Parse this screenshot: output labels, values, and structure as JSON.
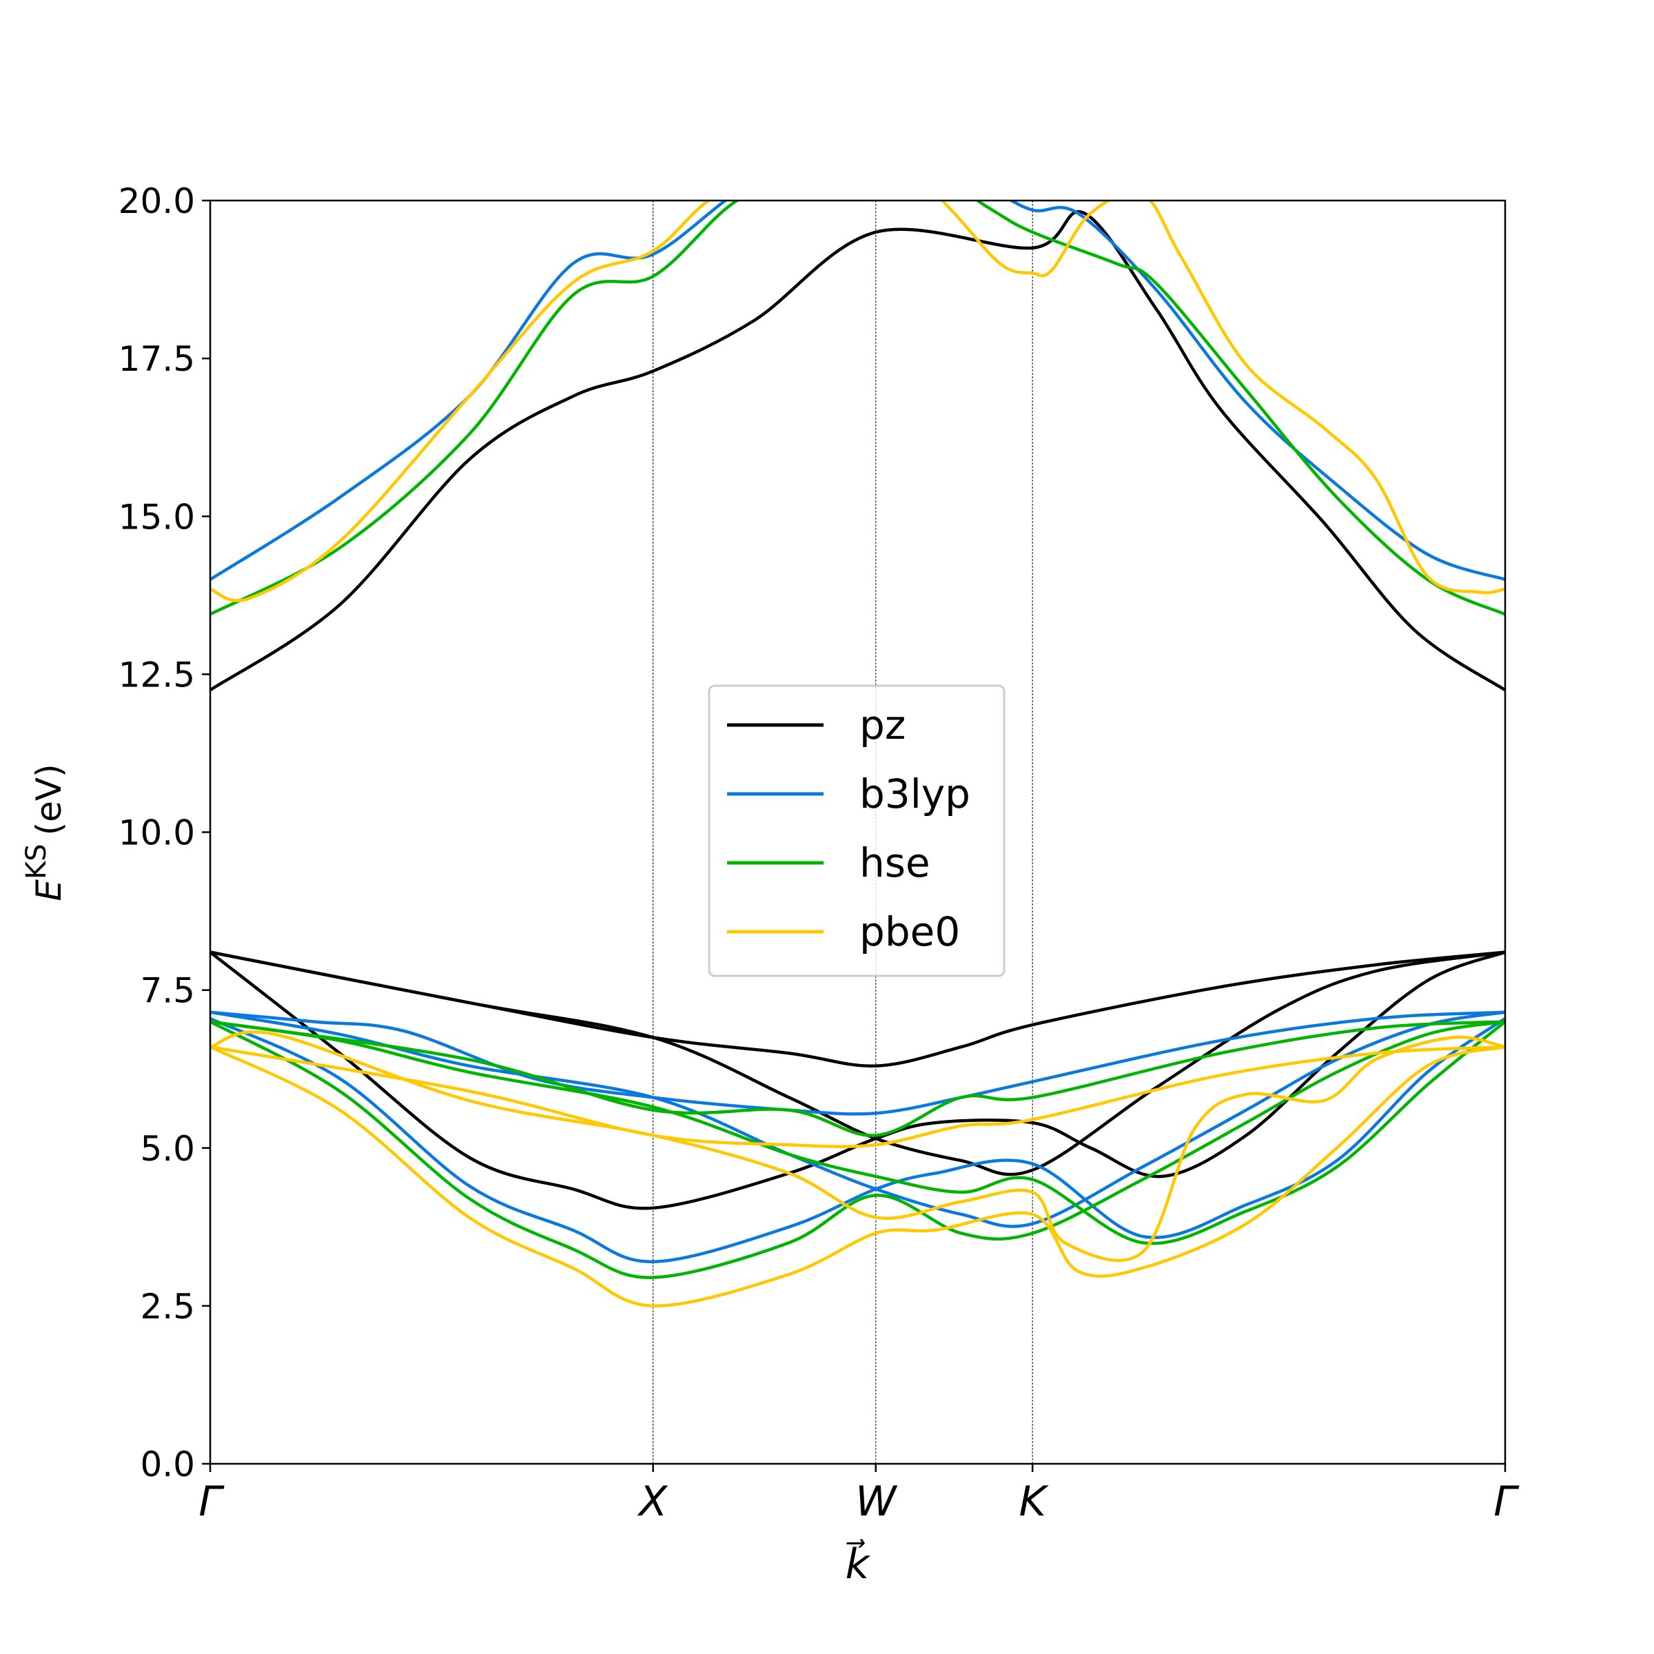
{
  "chart_data": {
    "type": "line",
    "xlabel": "k⃗",
    "ylabel": "E^KS (eV)",
    "ylabel_main": "E",
    "ylabel_sup": "KS",
    "ylabel_unit": "(eV)",
    "ylim": [
      0,
      20
    ],
    "yticks": [
      "0.0",
      "2.5",
      "5.0",
      "7.5",
      "10.0",
      "12.5",
      "15.0",
      "17.5",
      "20.0"
    ],
    "xlim": [
      0,
      1
    ],
    "high_symmetry_points": [
      {
        "label": "Γ",
        "k": 0
      },
      {
        "label": "X",
        "k": 0.342
      },
      {
        "label": "W",
        "k": 0.514
      },
      {
        "label": "K",
        "k": 0.635
      },
      {
        "label": "Γ",
        "k": 1
      }
    ],
    "legend_position": "center",
    "series": [
      {
        "name": "pz",
        "color": "#000000",
        "bands": [
          [
            [
              0,
              12.25
            ],
            [
              0.1,
              13.6
            ],
            [
              0.2,
              15.9
            ],
            [
              0.28,
              16.9
            ],
            [
              0.342,
              17.3
            ],
            [
              0.42,
              18.1
            ],
            [
              0.514,
              19.5
            ],
            [
              0.635,
              19.25
            ],
            [
              0.675,
              19.8
            ],
            [
              0.73,
              18.3
            ],
            [
              0.78,
              16.7
            ],
            [
              0.86,
              14.9
            ],
            [
              0.93,
              13.2
            ],
            [
              1,
              12.25
            ]
          ],
          [
            [
              0,
              8.1
            ],
            [
              0.2,
              7.3
            ],
            [
              0.342,
              6.75
            ],
            [
              0.447,
              6.5
            ],
            [
              0.514,
              6.3
            ],
            [
              0.58,
              6.6
            ],
            [
              0.635,
              6.95
            ],
            [
              0.78,
              7.55
            ],
            [
              0.9,
              7.9
            ],
            [
              1,
              8.1
            ]
          ],
          [
            [
              0,
              8.1
            ],
            [
              0.2,
              7.3
            ],
            [
              0.342,
              6.75
            ],
            [
              0.447,
              5.8
            ],
            [
              0.514,
              5.15
            ],
            [
              0.58,
              4.8
            ],
            [
              0.635,
              4.65
            ],
            [
              0.73,
              5.95
            ],
            [
              0.826,
              7.2
            ],
            [
              0.9,
              7.8
            ],
            [
              1,
              8.1
            ]
          ],
          [
            [
              0,
              8.1
            ],
            [
              0.1,
              6.5
            ],
            [
              0.2,
              4.85
            ],
            [
              0.28,
              4.35
            ],
            [
              0.342,
              4.05
            ],
            [
              0.447,
              4.6
            ],
            [
              0.514,
              5.15
            ],
            [
              0.56,
              5.4
            ],
            [
              0.635,
              5.4
            ],
            [
              0.68,
              5.0
            ],
            [
              0.735,
              4.55
            ],
            [
              0.8,
              5.2
            ],
            [
              0.87,
              6.5
            ],
            [
              0.94,
              7.65
            ],
            [
              1,
              8.1
            ]
          ]
        ]
      },
      {
        "name": "b3lyp",
        "color": "#0a78dc",
        "bands": [
          [
            [
              0,
              14.0
            ],
            [
              0.1,
              15.3
            ],
            [
              0.2,
              16.9
            ],
            [
              0.28,
              19.0
            ],
            [
              0.342,
              19.15
            ],
            [
              0.42,
              20.3
            ],
            [
              0.514,
              21
            ],
            [
              0.6,
              20.2
            ],
            [
              0.635,
              19.85
            ],
            [
              0.67,
              19.8
            ],
            [
              0.73,
              18.6
            ],
            [
              0.8,
              16.8
            ],
            [
              0.87,
              15.5
            ],
            [
              0.94,
              14.4
            ],
            [
              1,
              14.0
            ]
          ],
          [
            [
              0,
              7.15
            ],
            [
              0.08,
              7.0
            ],
            [
              0.15,
              6.85
            ],
            [
              0.25,
              6.1
            ],
            [
              0.342,
              5.8
            ],
            [
              0.447,
              5.6
            ],
            [
              0.514,
              5.55
            ],
            [
              0.58,
              5.8
            ],
            [
              0.635,
              6.05
            ],
            [
              0.78,
              6.7
            ],
            [
              0.9,
              7.05
            ],
            [
              1,
              7.15
            ]
          ],
          [
            [
              0,
              7.15
            ],
            [
              0.1,
              6.8
            ],
            [
              0.2,
              6.3
            ],
            [
              0.342,
              5.8
            ],
            [
              0.447,
              4.9
            ],
            [
              0.514,
              4.35
            ],
            [
              0.58,
              3.95
            ],
            [
              0.635,
              3.8
            ],
            [
              0.72,
              4.7
            ],
            [
              0.8,
              5.6
            ],
            [
              0.87,
              6.4
            ],
            [
              0.94,
              6.95
            ],
            [
              1,
              7.15
            ]
          ],
          [
            [
              0,
              7.05
            ],
            [
              0.1,
              6.1
            ],
            [
              0.2,
              4.4
            ],
            [
              0.28,
              3.7
            ],
            [
              0.342,
              3.2
            ],
            [
              0.447,
              3.75
            ],
            [
              0.514,
              4.35
            ],
            [
              0.56,
              4.6
            ],
            [
              0.635,
              4.75
            ],
            [
              0.72,
              3.6
            ],
            [
              0.8,
              4.1
            ],
            [
              0.87,
              4.8
            ],
            [
              0.94,
              6.2
            ],
            [
              1,
              7.05
            ]
          ]
        ]
      },
      {
        "name": "hse",
        "color": "#00b400",
        "bands": [
          [
            [
              0,
              13.45
            ],
            [
              0.1,
              14.5
            ],
            [
              0.2,
              16.3
            ],
            [
              0.28,
              18.5
            ],
            [
              0.342,
              18.8
            ],
            [
              0.4,
              19.9
            ],
            [
              0.45,
              20.5
            ],
            [
              0.514,
              21
            ],
            [
              0.6,
              19.9
            ],
            [
              0.635,
              19.5
            ],
            [
              0.7,
              19.0
            ],
            [
              0.73,
              18.7
            ],
            [
              0.8,
              17.0
            ],
            [
              0.87,
              15.3
            ],
            [
              0.94,
              14.0
            ],
            [
              1,
              13.45
            ]
          ],
          [
            [
              0,
              7.0
            ],
            [
              0.2,
              6.4
            ],
            [
              0.342,
              5.6
            ],
            [
              0.447,
              5.6
            ],
            [
              0.514,
              5.2
            ],
            [
              0.58,
              5.8
            ],
            [
              0.635,
              5.8
            ],
            [
              0.78,
              6.5
            ],
            [
              0.9,
              6.9
            ],
            [
              1,
              7.0
            ]
          ],
          [
            [
              0,
              7.0
            ],
            [
              0.1,
              6.7
            ],
            [
              0.2,
              6.2
            ],
            [
              0.342,
              5.65
            ],
            [
              0.447,
              4.9
            ],
            [
              0.514,
              4.55
            ],
            [
              0.58,
              4.3
            ],
            [
              0.635,
              4.5
            ],
            [
              0.72,
              3.5
            ],
            [
              0.8,
              4.0
            ],
            [
              0.87,
              4.7
            ],
            [
              0.94,
              6.0
            ],
            [
              1,
              7.0
            ]
          ],
          [
            [
              0,
              7.0
            ],
            [
              0.1,
              5.9
            ],
            [
              0.2,
              4.2
            ],
            [
              0.28,
              3.4
            ],
            [
              0.342,
              2.95
            ],
            [
              0.447,
              3.5
            ],
            [
              0.514,
              4.25
            ],
            [
              0.58,
              3.65
            ],
            [
              0.635,
              3.65
            ],
            [
              0.72,
              4.5
            ],
            [
              0.8,
              5.4
            ],
            [
              0.87,
              6.2
            ],
            [
              0.94,
              6.8
            ],
            [
              1,
              7.0
            ]
          ]
        ]
      },
      {
        "name": "pbe0",
        "color": "#ffc800",
        "bands": [
          [
            [
              0,
              13.85
            ],
            [
              0.03,
              13.7
            ],
            [
              0.1,
              14.6
            ],
            [
              0.2,
              16.9
            ],
            [
              0.28,
              18.7
            ],
            [
              0.342,
              19.2
            ],
            [
              0.4,
              20.2
            ],
            [
              0.514,
              21
            ],
            [
              0.57,
              19.9
            ],
            [
              0.61,
              19.0
            ],
            [
              0.635,
              18.85
            ],
            [
              0.65,
              18.9
            ],
            [
              0.68,
              19.8
            ],
            [
              0.72,
              20.1
            ],
            [
              0.75,
              19.1
            ],
            [
              0.8,
              17.4
            ],
            [
              0.86,
              16.4
            ],
            [
              0.9,
              15.6
            ],
            [
              0.94,
              14.05
            ],
            [
              0.98,
              13.8
            ],
            [
              1,
              13.85
            ]
          ],
          [
            [
              0,
              6.6
            ],
            [
              0.2,
              5.9
            ],
            [
              0.342,
              5.2
            ],
            [
              0.447,
              5.05
            ],
            [
              0.514,
              5.05
            ],
            [
              0.58,
              5.35
            ],
            [
              0.635,
              5.45
            ],
            [
              0.78,
              6.15
            ],
            [
              0.9,
              6.5
            ],
            [
              1,
              6.6
            ]
          ],
          [
            [
              0,
              6.6
            ],
            [
              0.05,
              6.8
            ],
            [
              0.2,
              5.75
            ],
            [
              0.342,
              5.2
            ],
            [
              0.447,
              4.6
            ],
            [
              0.514,
              3.9
            ],
            [
              0.58,
              4.15
            ],
            [
              0.635,
              4.3
            ],
            [
              0.66,
              3.5
            ],
            [
              0.72,
              3.35
            ],
            [
              0.76,
              5.3
            ],
            [
              0.8,
              5.85
            ],
            [
              0.86,
              5.75
            ],
            [
              0.9,
              6.4
            ],
            [
              0.96,
              6.75
            ],
            [
              1,
              6.6
            ]
          ],
          [
            [
              0,
              6.6
            ],
            [
              0.1,
              5.6
            ],
            [
              0.2,
              3.9
            ],
            [
              0.28,
              3.1
            ],
            [
              0.342,
              2.5
            ],
            [
              0.447,
              3.0
            ],
            [
              0.514,
              3.65
            ],
            [
              0.56,
              3.7
            ],
            [
              0.635,
              3.95
            ],
            [
              0.67,
              3.05
            ],
            [
              0.72,
              3.1
            ],
            [
              0.8,
              3.8
            ],
            [
              0.87,
              5.0
            ],
            [
              0.94,
              6.3
            ],
            [
              1,
              6.6
            ]
          ]
        ]
      }
    ]
  }
}
